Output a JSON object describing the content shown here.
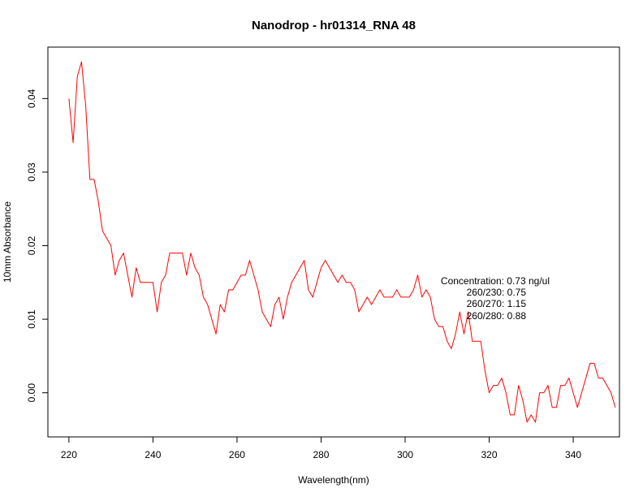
{
  "chart_data": {
    "type": "line",
    "title": "Nanodrop - hr01314_RNA 48",
    "xlabel": "Wavelength(nm)",
    "ylabel": "10mm Absorbance",
    "xlim": [
      215,
      351
    ],
    "ylim": [
      -0.006,
      0.047
    ],
    "x_ticks": [
      220,
      240,
      260,
      280,
      300,
      320,
      340
    ],
    "x_tick_labels": [
      "220",
      "240",
      "260",
      "280",
      "300",
      "320",
      "340"
    ],
    "y_ticks": [
      0.0,
      0.01,
      0.02,
      0.03,
      0.04
    ],
    "y_tick_labels": [
      "0.00",
      "0.01",
      "0.02",
      "0.03",
      "0.04"
    ],
    "grid": false,
    "series": [
      {
        "color": "#ff0000",
        "x": [
          220,
          221,
          222,
          223,
          224,
          225,
          226,
          227,
          228,
          229,
          230,
          231,
          232,
          233,
          234,
          235,
          236,
          237,
          238,
          239,
          240,
          241,
          242,
          243,
          244,
          245,
          246,
          247,
          248,
          249,
          250,
          251,
          252,
          253,
          254,
          255,
          256,
          257,
          258,
          259,
          260,
          261,
          262,
          263,
          264,
          265,
          266,
          267,
          268,
          269,
          270,
          271,
          272,
          273,
          274,
          275,
          276,
          277,
          278,
          279,
          280,
          281,
          282,
          283,
          284,
          285,
          286,
          287,
          288,
          289,
          290,
          291,
          292,
          293,
          294,
          295,
          296,
          297,
          298,
          299,
          300,
          301,
          302,
          303,
          304,
          305,
          306,
          307,
          308,
          309,
          310,
          311,
          312,
          313,
          314,
          315,
          316,
          317,
          318,
          319,
          320,
          321,
          322,
          323,
          324,
          325,
          326,
          327,
          328,
          329,
          330,
          331,
          332,
          333,
          334,
          335,
          336,
          337,
          338,
          339,
          340,
          341,
          342,
          343,
          344,
          345,
          346,
          347,
          348,
          349,
          350
        ],
        "y": [
          0.04,
          0.034,
          0.043,
          0.045,
          0.039,
          0.029,
          0.029,
          0.026,
          0.022,
          0.021,
          0.02,
          0.016,
          0.018,
          0.019,
          0.016,
          0.013,
          0.017,
          0.015,
          0.015,
          0.015,
          0.015,
          0.011,
          0.015,
          0.016,
          0.019,
          0.019,
          0.019,
          0.019,
          0.016,
          0.019,
          0.017,
          0.016,
          0.013,
          0.012,
          0.01,
          0.008,
          0.012,
          0.011,
          0.014,
          0.014,
          0.015,
          0.016,
          0.016,
          0.018,
          0.016,
          0.014,
          0.011,
          0.01,
          0.009,
          0.012,
          0.013,
          0.01,
          0.013,
          0.015,
          0.016,
          0.017,
          0.018,
          0.014,
          0.013,
          0.015,
          0.017,
          0.018,
          0.017,
          0.016,
          0.015,
          0.016,
          0.015,
          0.015,
          0.014,
          0.011,
          0.012,
          0.013,
          0.012,
          0.013,
          0.014,
          0.013,
          0.013,
          0.013,
          0.014,
          0.013,
          0.013,
          0.013,
          0.014,
          0.016,
          0.013,
          0.014,
          0.013,
          0.01,
          0.009,
          0.009,
          0.007,
          0.006,
          0.008,
          0.011,
          0.008,
          0.011,
          0.007,
          0.007,
          0.007,
          0.003,
          0.0,
          0.001,
          0.001,
          0.002,
          0.0,
          -0.003,
          -0.003,
          0.001,
          -0.001,
          -0.004,
          -0.003,
          -0.004,
          0.0,
          0.0,
          0.001,
          -0.002,
          -0.002,
          0.001,
          0.001,
          0.002,
          0.0,
          -0.002,
          0.0,
          0.002,
          0.004,
          0.004,
          0.002,
          0.002,
          0.001,
          0.0,
          -0.002
        ]
      }
    ],
    "annotations": [
      "Concentration: 0.73 ng/ul",
      "260/230: 0.75",
      "260/270: 1.15",
      "260/280: 0.88"
    ]
  }
}
